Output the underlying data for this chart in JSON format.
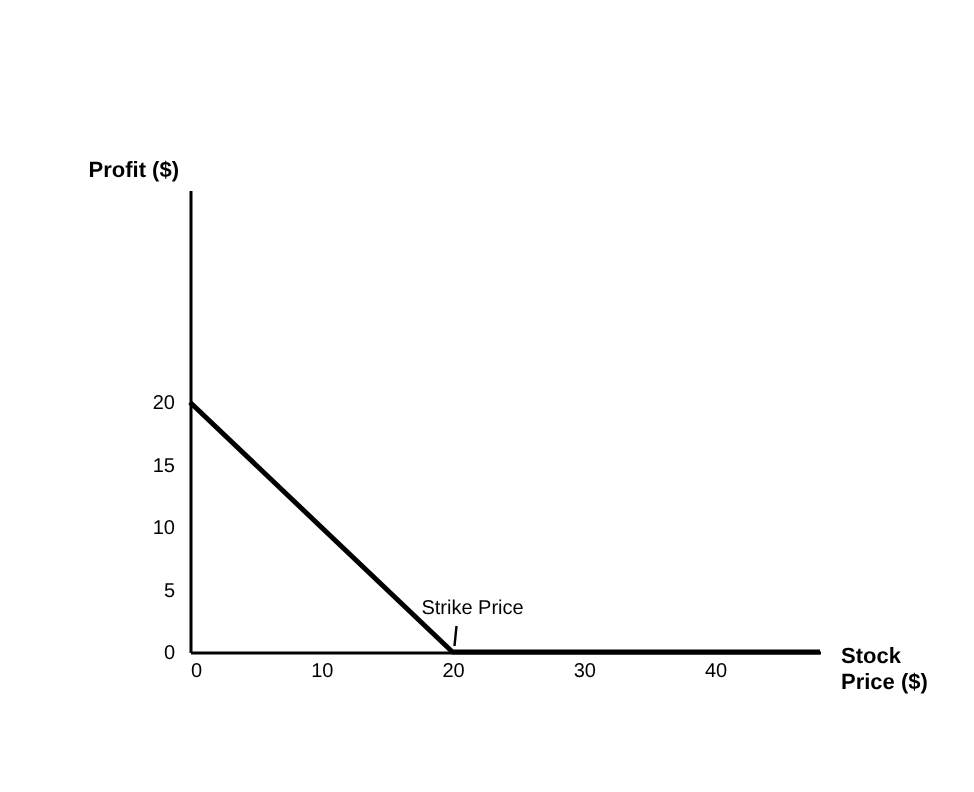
{
  "chart_data": {
    "type": "line",
    "xlabel": "Stock Price ($)",
    "ylabel": "Profit ($)",
    "x": [
      0,
      20,
      48
    ],
    "series": [
      {
        "color": "#000000",
        "values": [
          20,
          0,
          0
        ]
      }
    ],
    "xlim": [
      0,
      48
    ],
    "ylim": [
      0,
      37
    ],
    "xticks": [
      0,
      10,
      20,
      30,
      40
    ],
    "yticks": [
      0,
      5,
      10,
      15,
      20
    ],
    "annotations": [
      {
        "text": "Strike Price",
        "x": 20,
        "y": 0
      }
    ],
    "grid": false,
    "marker": "none",
    "line_style": "solid"
  }
}
